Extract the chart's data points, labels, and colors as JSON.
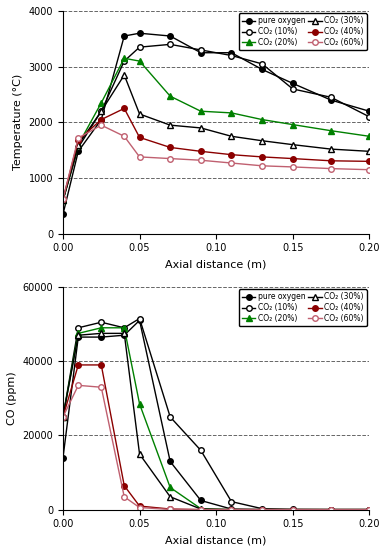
{
  "temp": {
    "x_points": [
      0,
      0.01,
      0.025,
      0.04,
      0.05,
      0.07,
      0.09,
      0.11,
      0.13,
      0.15,
      0.175,
      0.2
    ],
    "pure_oxygen": [
      350,
      1480,
      2050,
      3550,
      3600,
      3550,
      3250,
      3250,
      2950,
      2700,
      2400,
      2200
    ],
    "co2_10": [
      600,
      1550,
      2200,
      3100,
      3350,
      3400,
      3300,
      3200,
      3050,
      2600,
      2450,
      2100
    ],
    "co2_20": [
      600,
      1600,
      2350,
      3150,
      3100,
      2470,
      2200,
      2170,
      2050,
      1960,
      1850,
      1750
    ],
    "co2_30": [
      600,
      1600,
      2200,
      2850,
      2150,
      1950,
      1900,
      1750,
      1670,
      1600,
      1520,
      1480
    ],
    "co2_40": [
      620,
      1680,
      2050,
      2250,
      1730,
      1550,
      1480,
      1420,
      1380,
      1350,
      1310,
      1300
    ],
    "co2_60": [
      620,
      1720,
      1950,
      1750,
      1380,
      1350,
      1320,
      1270,
      1220,
      1200,
      1170,
      1150
    ],
    "ylim": [
      0,
      4000
    ],
    "yticks": [
      0,
      1000,
      2000,
      3000,
      4000
    ],
    "ylabel": "Temperature (°C)",
    "xlabel": "Axial distance (m)"
  },
  "co": {
    "x_points": [
      0,
      0.01,
      0.025,
      0.04,
      0.05,
      0.07,
      0.09,
      0.11,
      0.13,
      0.15,
      0.175,
      0.2
    ],
    "pure_oxygen": [
      14000,
      46500,
      46500,
      47000,
      51000,
      13000,
      2500,
      200,
      50,
      50,
      50,
      50
    ],
    "co2_10": [
      25000,
      49000,
      50500,
      49000,
      51500,
      25000,
      16000,
      2200,
      300,
      100,
      50,
      50
    ],
    "co2_20": [
      25000,
      47500,
      49000,
      49000,
      28500,
      6000,
      300,
      50,
      50,
      50,
      50,
      50
    ],
    "co2_30": [
      25000,
      47000,
      47500,
      47500,
      15000,
      3500,
      200,
      50,
      50,
      50,
      50,
      50
    ],
    "co2_40": [
      25000,
      39000,
      39000,
      6500,
      1000,
      200,
      50,
      50,
      50,
      50,
      50,
      50
    ],
    "co2_60": [
      25000,
      33500,
      33000,
      3500,
      600,
      100,
      50,
      50,
      50,
      50,
      50,
      50
    ],
    "ylim": [
      0,
      60000
    ],
    "yticks": [
      0,
      20000,
      40000,
      60000
    ],
    "ylabel": "CO (ppm)",
    "xlabel": "Axial distance (m)"
  },
  "colors": {
    "pure_oxygen": "#000000",
    "co2_10": "#000000",
    "co2_20": "#008000",
    "co2_30": "#000000",
    "co2_40": "#8b0000",
    "co2_60": "#c06070"
  },
  "legend": {
    "pure_oxygen": "pure oxygen",
    "co2_10": "CO₂ (10%)",
    "co2_20": "CO₂ (20%)",
    "co2_30": "CO₂ (30%)",
    "co2_40": "CO₂ (40%)",
    "co2_60": "CO₂ (60%)"
  }
}
